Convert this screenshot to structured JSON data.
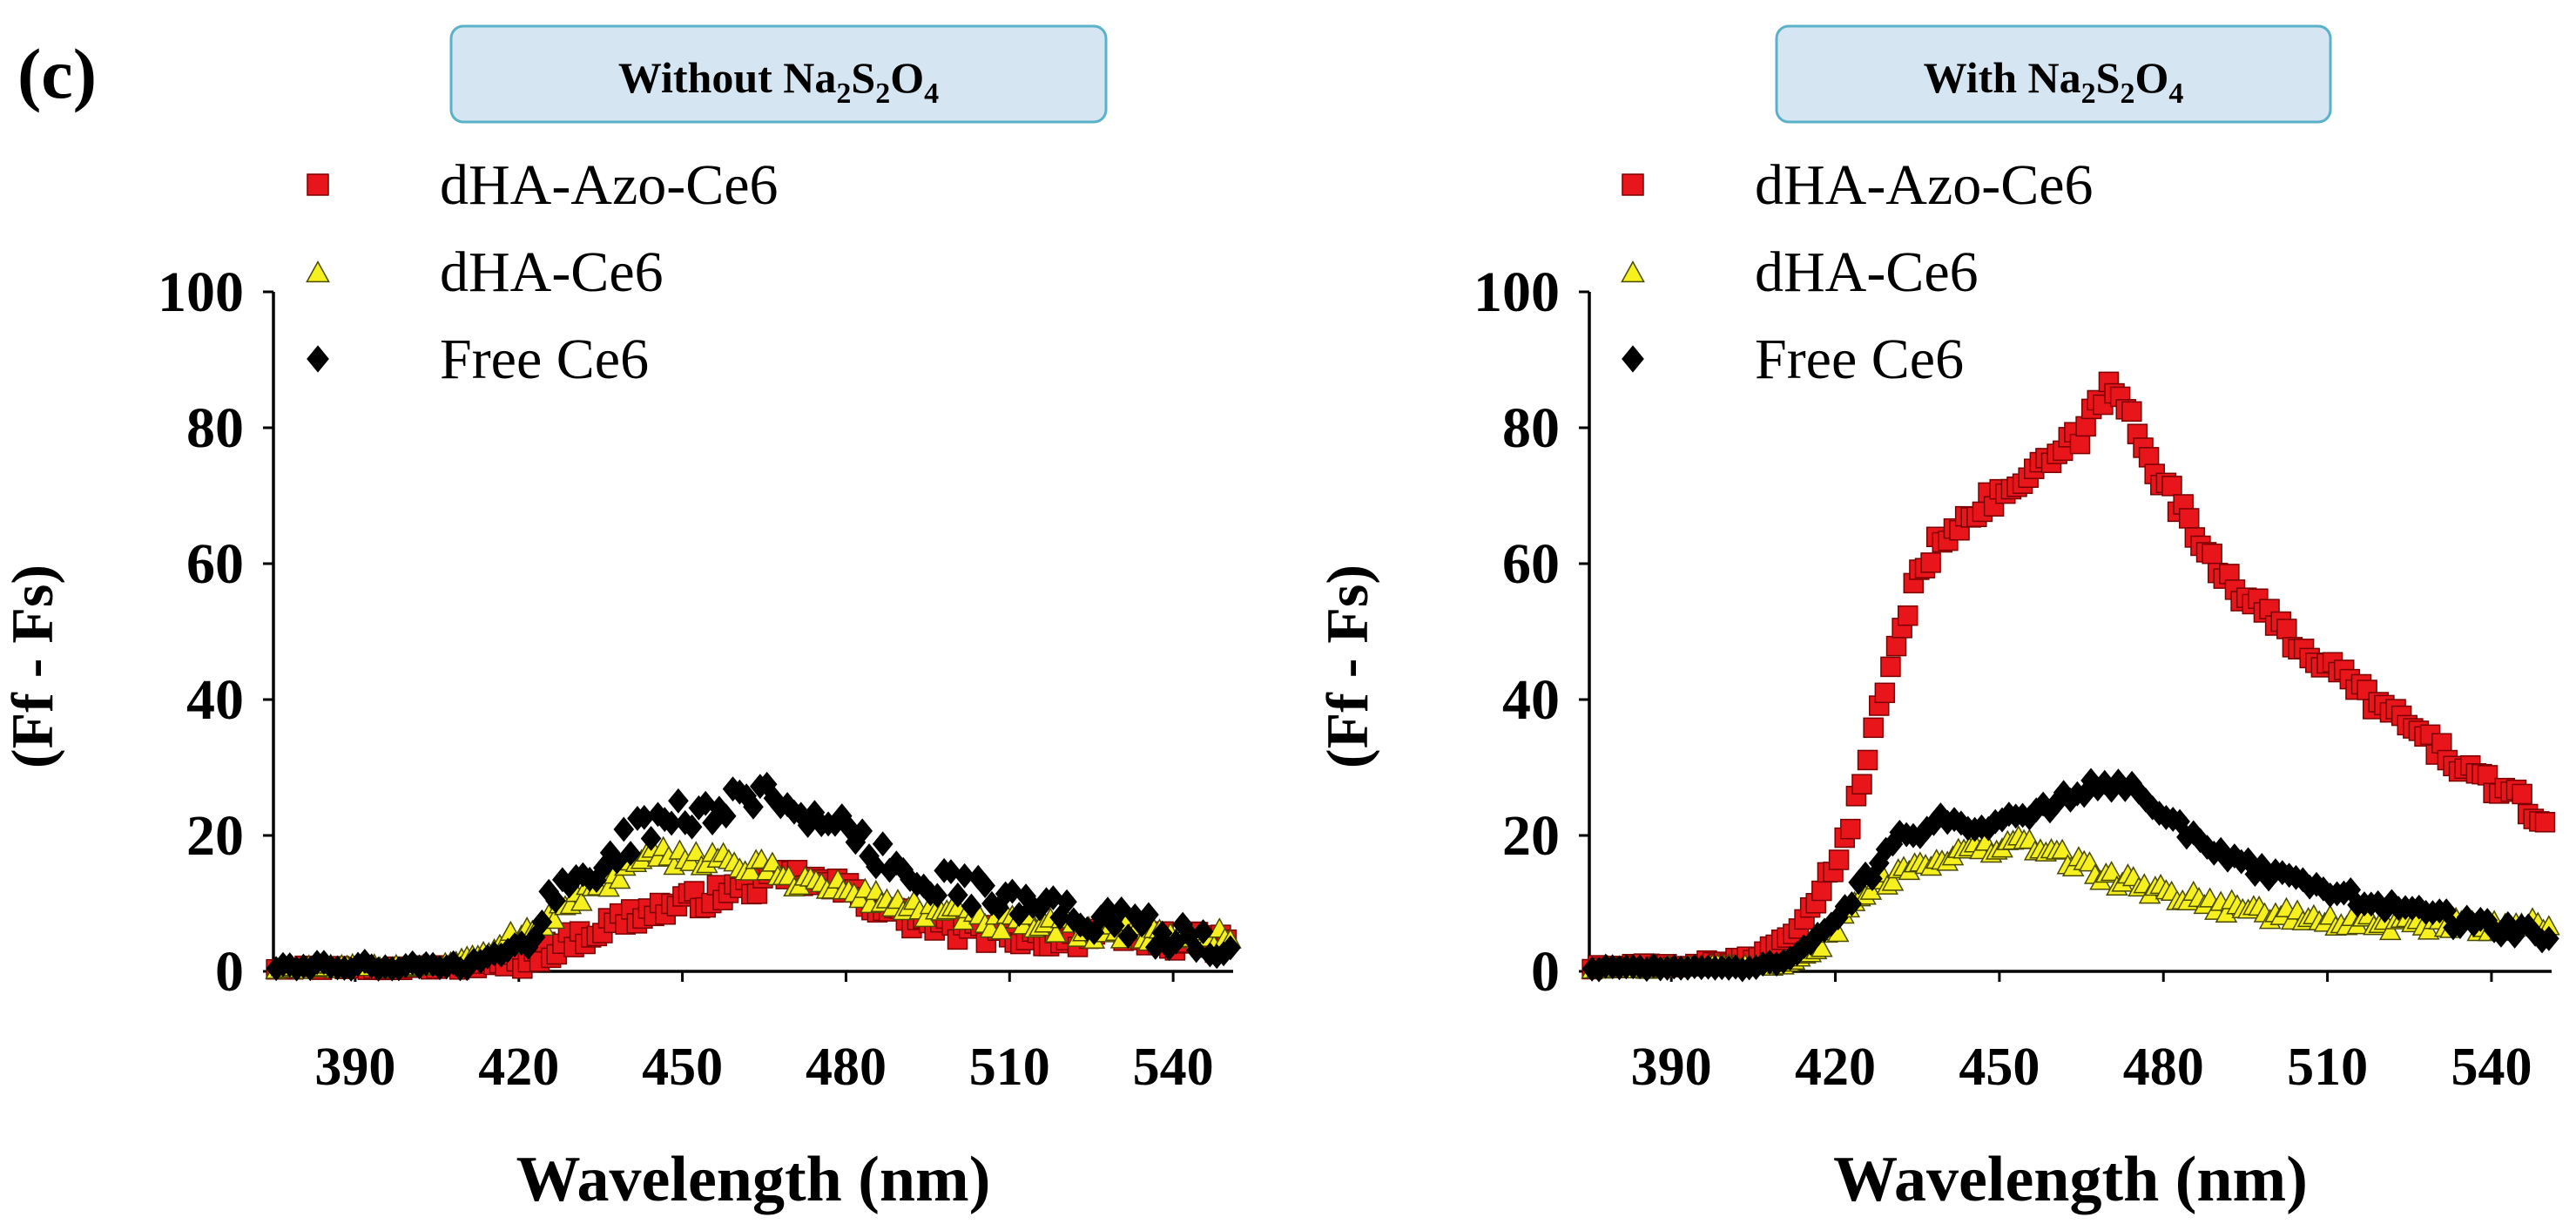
{
  "panel_label": "(c)",
  "colors": {
    "dha_azo": "#e8151b",
    "dha": "#f5f01e",
    "free": "#000000",
    "title_box_fill": "#d6e5f2",
    "title_box_stroke": "#5ab2c8"
  },
  "legend": [
    {
      "label": "dHA-Azo-Ce6",
      "marker": "square",
      "color": "#e8151b"
    },
    {
      "label": "dHA-Ce6",
      "marker": "triangle",
      "color": "#f5f01e"
    },
    {
      "label": "Free Ce6",
      "marker": "diamond",
      "color": "#000000"
    }
  ],
  "chart_data": [
    {
      "type": "scatter",
      "title": {
        "text": "Without Na",
        "parts": [
          "2",
          "S",
          "2",
          "O",
          "4"
        ],
        "full": "Without Na2S2O4"
      },
      "xlabel": "Wavelength (nm)",
      "ylabel": "(Ff - Fs)",
      "xlim": [
        375,
        551
      ],
      "ylim": [
        0,
        100
      ],
      "xticks": [
        390,
        420,
        450,
        480,
        510,
        540
      ],
      "yticks": [
        0,
        20,
        40,
        60,
        80,
        100
      ],
      "series": [
        {
          "name": "dHA-Azo-Ce6",
          "anchors": [
            [
              375,
              0.5
            ],
            [
              405,
              0.5
            ],
            [
              418,
              1
            ],
            [
              428,
              4
            ],
            [
              440,
              8
            ],
            [
              450,
              10
            ],
            [
              460,
              12
            ],
            [
              470,
              14
            ],
            [
              480,
              12
            ],
            [
              490,
              8
            ],
            [
              500,
              6
            ],
            [
              515,
              5
            ],
            [
              530,
              5
            ],
            [
              551,
              4
            ]
          ],
          "noise": 1.5
        },
        {
          "name": "dHA-Ce6",
          "anchors": [
            [
              375,
              0.5
            ],
            [
              405,
              1
            ],
            [
              415,
              3
            ],
            [
              425,
              8
            ],
            [
              435,
              13
            ],
            [
              445,
              17
            ],
            [
              455,
              17
            ],
            [
              465,
              15
            ],
            [
              475,
              13
            ],
            [
              485,
              11
            ],
            [
              495,
              9
            ],
            [
              510,
              7
            ],
            [
              530,
              6
            ],
            [
              551,
              5
            ]
          ],
          "noise": 1.5
        },
        {
          "name": "Free Ce6",
          "anchors": [
            [
              375,
              0.5
            ],
            [
              410,
              1
            ],
            [
              420,
              3
            ],
            [
              425,
              10
            ],
            [
              433,
              15
            ],
            [
              445,
              22
            ],
            [
              455,
              24
            ],
            [
              465,
              26
            ],
            [
              470,
              25
            ],
            [
              480,
              20
            ],
            [
              490,
              15
            ],
            [
              500,
              13
            ],
            [
              510,
              10
            ],
            [
              520,
              9
            ],
            [
              535,
              6
            ],
            [
              551,
              4
            ]
          ],
          "noise": 2.5
        }
      ]
    },
    {
      "type": "scatter",
      "title": {
        "text": "With Na",
        "parts": [
          "2",
          "S",
          "2",
          "O",
          "4"
        ],
        "full": "With Na2S2O4"
      },
      "xlabel": "Wavelength (nm)",
      "ylabel": "(Ff - Fs)",
      "xlim": [
        375,
        551
      ],
      "ylim": [
        0,
        100
      ],
      "xticks": [
        390,
        420,
        450,
        480,
        510,
        540
      ],
      "yticks": [
        0,
        20,
        40,
        60,
        80,
        100
      ],
      "series": [
        {
          "name": "dHA-Azo-Ce6",
          "anchors": [
            [
              375,
              0.5
            ],
            [
              395,
              1
            ],
            [
              405,
              2
            ],
            [
              412,
              5
            ],
            [
              418,
              12
            ],
            [
              424,
              25
            ],
            [
              430,
              45
            ],
            [
              436,
              60
            ],
            [
              442,
              66
            ],
            [
              450,
              70
            ],
            [
              458,
              74
            ],
            [
              465,
              79
            ],
            [
              470,
              86
            ],
            [
              474,
              82
            ],
            [
              480,
              72
            ],
            [
              487,
              63
            ],
            [
              495,
              55
            ],
            [
              505,
              48
            ],
            [
              515,
              42
            ],
            [
              525,
              36
            ],
            [
              535,
              30
            ],
            [
              545,
              25
            ],
            [
              551,
              21
            ]
          ],
          "noise": 1.5
        },
        {
          "name": "dHA-Ce6",
          "anchors": [
            [
              375,
              0.5
            ],
            [
              410,
              1
            ],
            [
              418,
              4
            ],
            [
              425,
              12
            ],
            [
              435,
              16
            ],
            [
              445,
              18
            ],
            [
              455,
              19
            ],
            [
              462,
              17
            ],
            [
              470,
              14
            ],
            [
              480,
              12
            ],
            [
              490,
              10
            ],
            [
              505,
              8
            ],
            [
              520,
              7
            ],
            [
              540,
              7
            ],
            [
              551,
              7
            ]
          ],
          "noise": 1.2
        },
        {
          "name": "Free Ce6",
          "anchors": [
            [
              375,
              0.5
            ],
            [
              405,
              0.5
            ],
            [
              412,
              2
            ],
            [
              418,
              6
            ],
            [
              425,
              13
            ],
            [
              432,
              20
            ],
            [
              440,
              22
            ],
            [
              450,
              22
            ],
            [
              460,
              25
            ],
            [
              468,
              28
            ],
            [
              475,
              27
            ],
            [
              482,
              22
            ],
            [
              490,
              17
            ],
            [
              500,
              14
            ],
            [
              510,
              12
            ],
            [
              520,
              10
            ],
            [
              530,
              8
            ],
            [
              545,
              6
            ],
            [
              551,
              5
            ]
          ],
          "noise": 1.2
        }
      ]
    }
  ]
}
